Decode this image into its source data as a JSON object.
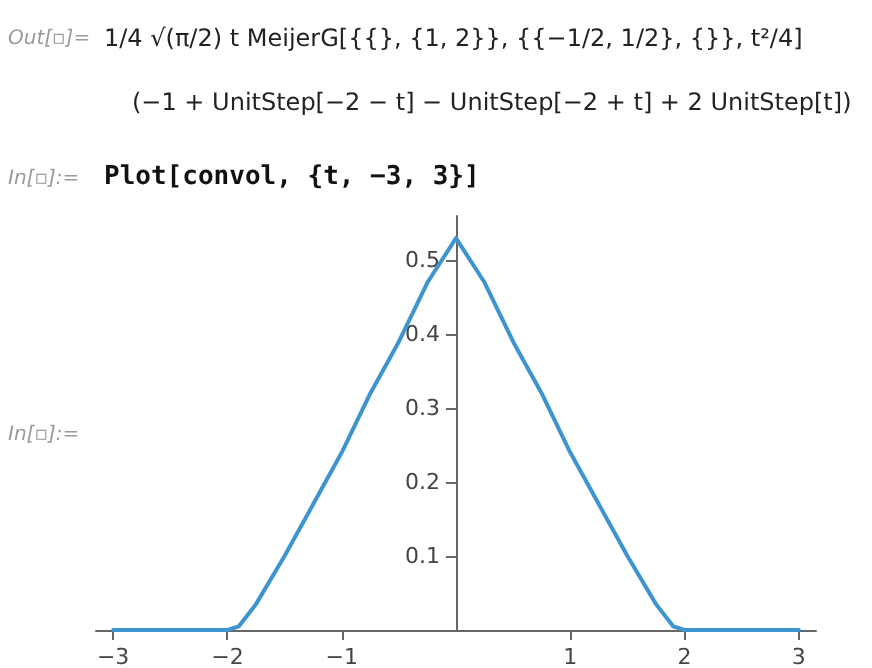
{
  "chart_data": {
    "type": "line",
    "x": [
      -3,
      -2.5,
      -2,
      -1.9,
      -1.75,
      -1.5,
      -1.25,
      -1,
      -0.75,
      -0.5,
      -0.25,
      0,
      0.25,
      0.5,
      0.75,
      1,
      1.25,
      1.5,
      1.75,
      1.9,
      2,
      2.5,
      3
    ],
    "series": [
      {
        "color": "#3d94cf",
        "values": [
          0,
          0,
          0,
          0.005,
          0.035,
          0.1,
          0.17,
          0.24,
          0.32,
          0.39,
          0.47,
          0.53,
          0.47,
          0.39,
          0.32,
          0.24,
          0.17,
          0.1,
          0.035,
          0.005,
          0,
          0,
          0
        ]
      }
    ],
    "xlim": [
      -3.15,
      3.15
    ],
    "ylim": [
      0,
      0.56
    ],
    "xticks": [
      {
        "value": -3,
        "label": "−3"
      },
      {
        "value": -2,
        "label": "−2"
      },
      {
        "value": -1,
        "label": "−1"
      },
      1,
      2,
      3
    ],
    "yticks": [
      0.1,
      0.2,
      0.3,
      0.4,
      0.5
    ],
    "grid": false,
    "marker": "none",
    "line_style": "solid",
    "annotations": [
      "Out[▫]=",
      "1/4 √(π/2) t MeijerG[{{}, {1, 2}}, {{−1/2, 1/2}, {}}, t²/4]",
      "(−1 + UnitStep[−2 − t] − UnitStep[−2 + t] + 2 UnitStep[t])",
      "In[▫]:=",
      "Plot[convol, {t, −3, 3}]",
      "In[▫]:="
    ]
  }
}
